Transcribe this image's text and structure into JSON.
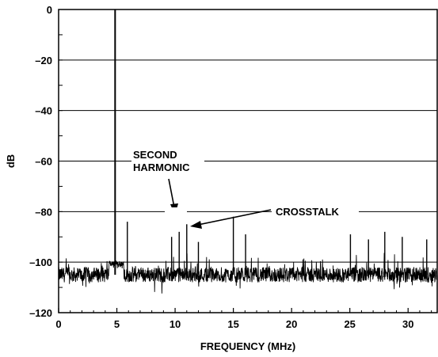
{
  "chart_data": {
    "type": "line",
    "title": "",
    "xlabel": "FREQUENCY (MHz)",
    "ylabel": "dB",
    "xlim": [
      0,
      32.5
    ],
    "ylim": [
      -120,
      0
    ],
    "x_ticks": [
      0,
      5,
      10,
      15,
      20,
      25,
      30
    ],
    "x_tick_labels": [
      "0",
      "5",
      "10",
      "15",
      "20",
      "25",
      "30"
    ],
    "y_ticks": [
      0,
      -20,
      -40,
      -60,
      -80,
      -100,
      -120
    ],
    "y_tick_labels": [
      "0",
      "–20",
      "–40",
      "–60",
      "–80",
      "–100",
      "–120"
    ],
    "grid": "horizontal",
    "noise_floor_db": -105,
    "noise_spread_db": 3,
    "spurs": [
      {
        "x": 4.85,
        "y": 0
      },
      {
        "x": 5.9,
        "y": -84
      },
      {
        "x": 9.7,
        "y": -90
      },
      {
        "x": 10.35,
        "y": -88
      },
      {
        "x": 11.0,
        "y": -85
      },
      {
        "x": 12.0,
        "y": -92
      },
      {
        "x": 15.0,
        "y": -82
      },
      {
        "x": 16.05,
        "y": -89
      },
      {
        "x": 25.05,
        "y": -89
      },
      {
        "x": 26.6,
        "y": -91
      },
      {
        "x": 28.0,
        "y": -88
      },
      {
        "x": 29.5,
        "y": -90
      },
      {
        "x": 31.6,
        "y": -91
      }
    ],
    "annotations": [
      {
        "text": "SECOND HARMONIC",
        "lines": [
          "SECOND",
          "HARMONIC"
        ],
        "points_to": {
          "x": 10.35,
          "y": -80
        }
      },
      {
        "text": "CROSSTALK",
        "lines": [
          "CROSSTALK"
        ],
        "points_to": {
          "x": 11.0,
          "y": -85
        }
      }
    ]
  }
}
